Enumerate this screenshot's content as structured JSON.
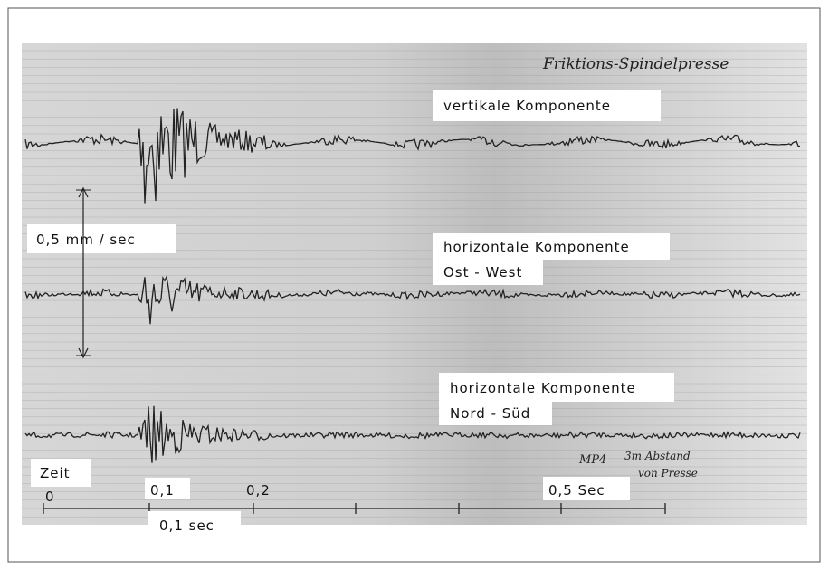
{
  "header": {
    "title": "Friktions-Spindelpresse"
  },
  "traces": [
    {
      "label": [
        "vertikale Komponente"
      ]
    },
    {
      "label": [
        "horizontale Komponente",
        "Ost - West"
      ]
    },
    {
      "label": [
        "horizontale Komponente",
        "Nord - Süd"
      ]
    }
  ],
  "amplitude_scale": "0,5 mm / sec",
  "note": [
    "MP4",
    "3m Abstand",
    "von Presse"
  ],
  "time_axis": {
    "title": "Zeit",
    "ticks": [
      "0",
      "0,1",
      "0,2",
      "0,5 Sec"
    ],
    "scale": "0,1 sec"
  }
}
